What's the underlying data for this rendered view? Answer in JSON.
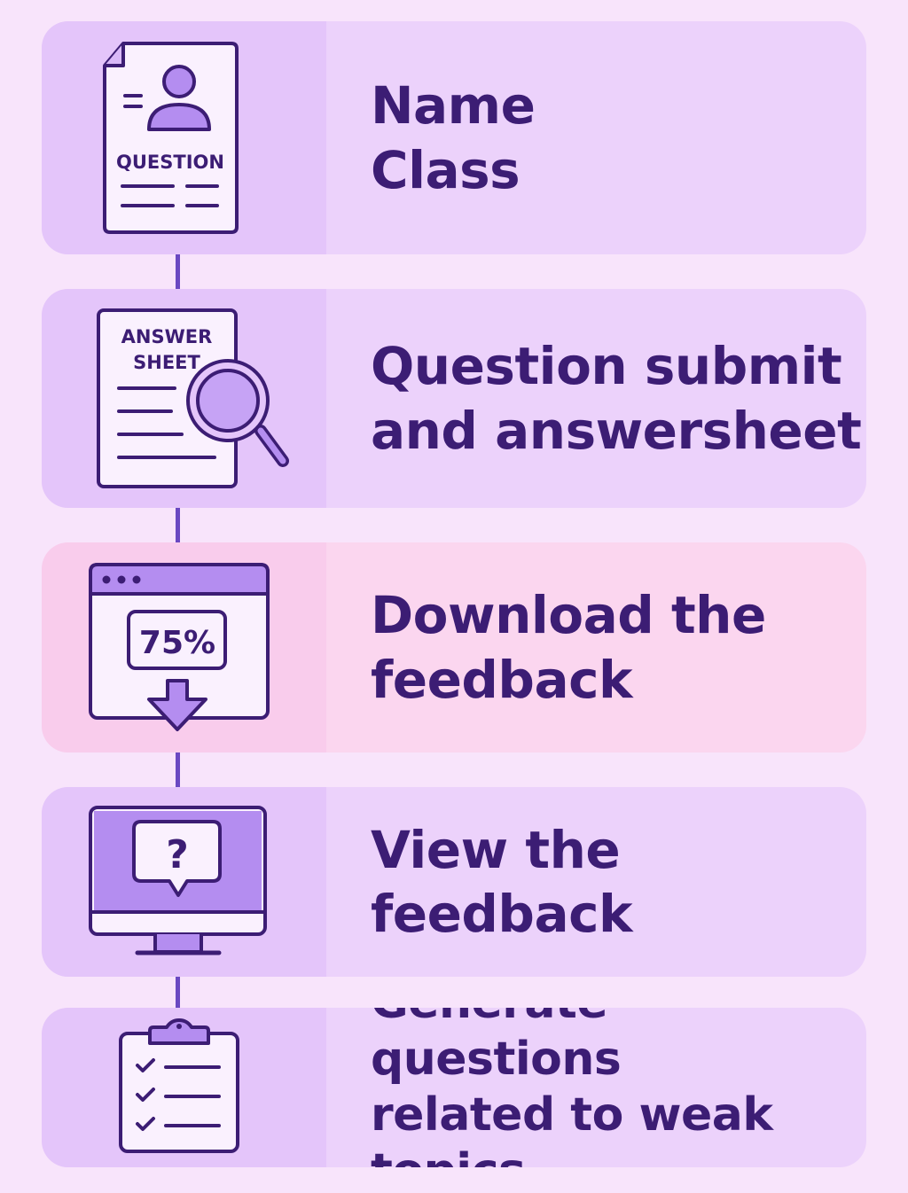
{
  "steps": [
    {
      "label": "Name\nClass",
      "icon": "question-document-icon",
      "icon_text": "QUESTION"
    },
    {
      "label": "Question submit\nand answersheet",
      "icon": "answer-sheet-magnifier-icon",
      "icon_text": [
        "ANSWER",
        "SHEET"
      ]
    },
    {
      "label": "Download the\nfeedback",
      "icon": "browser-download-icon",
      "icon_text": "75%",
      "highlight_color": "#fbd6ef"
    },
    {
      "label": "View the\nfeedback",
      "icon": "monitor-question-icon",
      "icon_text": "?"
    },
    {
      "label": "Generate questions\nrelated to weak topics",
      "icon": "clipboard-checklist-icon"
    }
  ],
  "colors": {
    "background": "#f8e4fb",
    "card": "#ecd2fb",
    "icon_panel": "#e4c5fa",
    "stroke": "#3c1d74",
    "accent": "#b48df0",
    "connector": "#6a48c2"
  }
}
